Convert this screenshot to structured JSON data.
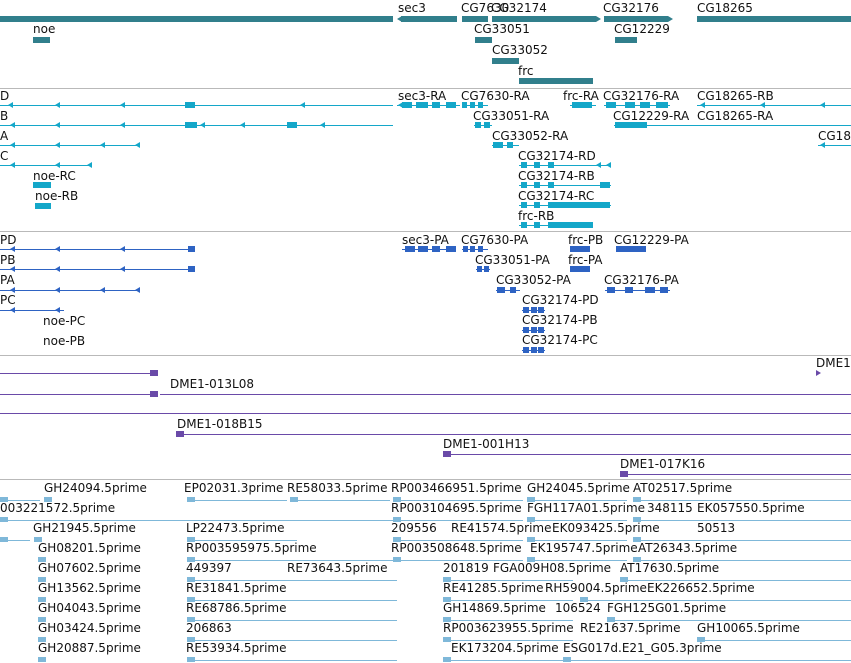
{
  "colors": {
    "gene": "#317f8c",
    "transcript": "#14a7c9",
    "protein": "#2e63c3",
    "clone": "#6a4aa8",
    "est": "#7fb8d9",
    "separator": "#b9b9b9"
  },
  "tracks": {
    "genes": {
      "labels": [
        "sec3",
        "CG7630",
        "CG32174",
        "CG32176",
        "CG18265",
        "noe",
        "CG33051",
        "CG12229",
        "CG33052",
        "frc"
      ]
    },
    "transcripts": {
      "labels": [
        "D",
        "B",
        "A",
        "C",
        "sec3-RA",
        "CG7630-RA",
        "frc-RA",
        "CG32176-RA",
        "CG18265-RB",
        "CG33051-RA",
        "CG12229-RA",
        "CG18265-RA",
        "CG18",
        "CG33052-RA",
        "CG32174-RD",
        "noe-RC",
        "CG32174-RB",
        "noe-RB",
        "CG32174-RC",
        "frc-RB"
      ]
    },
    "proteins": {
      "labels": [
        "PD",
        "PB",
        "PA",
        "PC",
        "sec3-PA",
        "CG7630-PA",
        "frc-PB",
        "CG12229-PA",
        "CG33051-PA",
        "frc-PA",
        "CG33052-PA",
        "CG32176-PA",
        "CG32174-PD",
        "noe-PC",
        "CG32174-PB",
        "noe-PB",
        "CG32174-PC"
      ]
    },
    "clones": {
      "labels": [
        "DME1",
        "DME1-013L08",
        "DME1-018B15",
        "DME1-001H13",
        "DME1-017K16"
      ]
    },
    "ests": {
      "labels": [
        "GH24094.5prime",
        "EP02031.3prime",
        "RE58033.5prime",
        "RP003466951.5prime",
        "GH24045.5prime",
        "AT02517.5prime",
        "003221572.5prime",
        "RP003104695.5prime",
        "FGH117A01.5prime",
        "348115",
        "EK057550.5prime",
        "GH21945.5prime",
        "LP22473.5prime",
        "209556",
        "RE41574.5prime",
        "EK093425.5prime",
        "50513",
        "GH08201.5prime",
        "RP003595975.5prime",
        "RP003508648.5prime",
        "EK195747.5prime",
        "AT26343.5prime",
        "GH07602.5prime",
        "449397",
        "RE73643.5prime",
        "201819",
        "FGA009H08.5prime",
        "AT17630.5prime",
        "GH13562.5prime",
        "RE31841.5prime",
        "RE41285.5prime",
        "RH59004.5prime",
        "EK226652.5prime",
        "GH04043.5prime",
        "RE68786.5prime",
        "GH14869.5prime",
        "106524",
        "FGH125G01.5prime",
        "GH03424.5prime",
        "206863",
        "RP003623955.5prime",
        "RE21637.5prime",
        "GH10065.5prime",
        "GH20887.5prime",
        "RE53934.5prime",
        "EK173204.5prime",
        "ESG017d.E21_G05.3prime"
      ]
    }
  }
}
